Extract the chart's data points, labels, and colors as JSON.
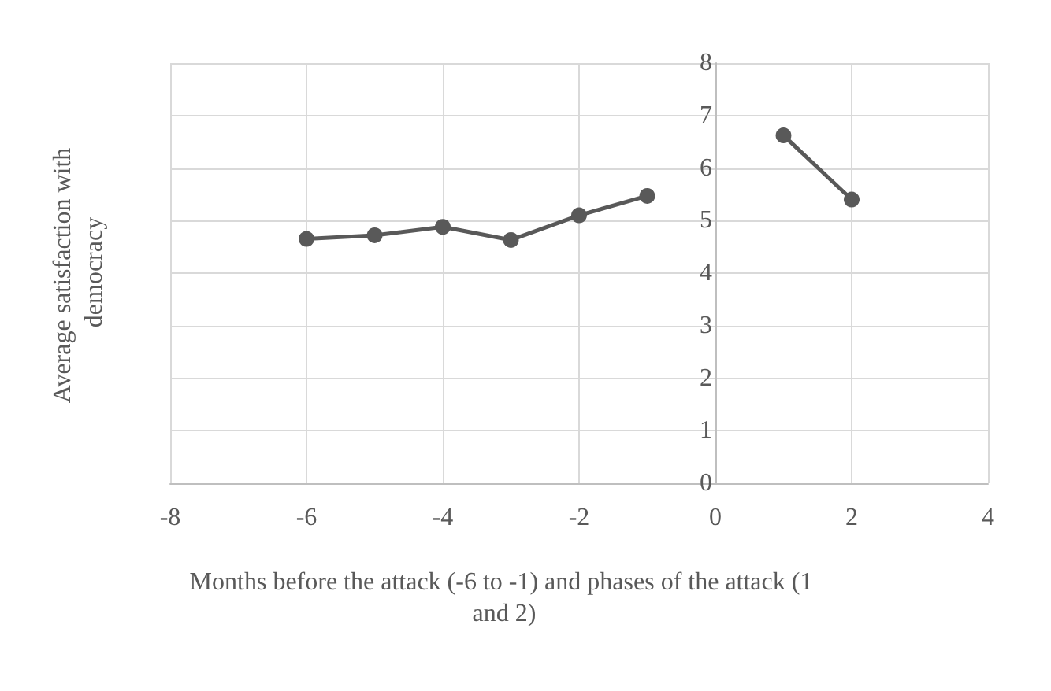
{
  "chart_data": {
    "type": "line",
    "xlabel": "Months before the attack (-6 to -1) and phases of the attack (1 and 2)",
    "ylabel": "Average satisfaction with democracy",
    "x": [
      -6,
      -5,
      -4,
      -3,
      -2,
      -1,
      0,
      1,
      2
    ],
    "series": [
      {
        "color": "#595959",
        "values": [
          4.65,
          4.72,
          4.88,
          4.63,
          5.1,
          5.47,
          null,
          6.62,
          5.4
        ]
      }
    ],
    "xlim": [
      -8,
      4
    ],
    "xticks": [
      -8,
      -6,
      -4,
      -2,
      0,
      2,
      4
    ],
    "ylim": [
      0,
      8
    ],
    "yticks": [
      0,
      1,
      2,
      3,
      4,
      5,
      6,
      7,
      8
    ],
    "grid": true,
    "marker": "circle",
    "line_style": "solid"
  }
}
